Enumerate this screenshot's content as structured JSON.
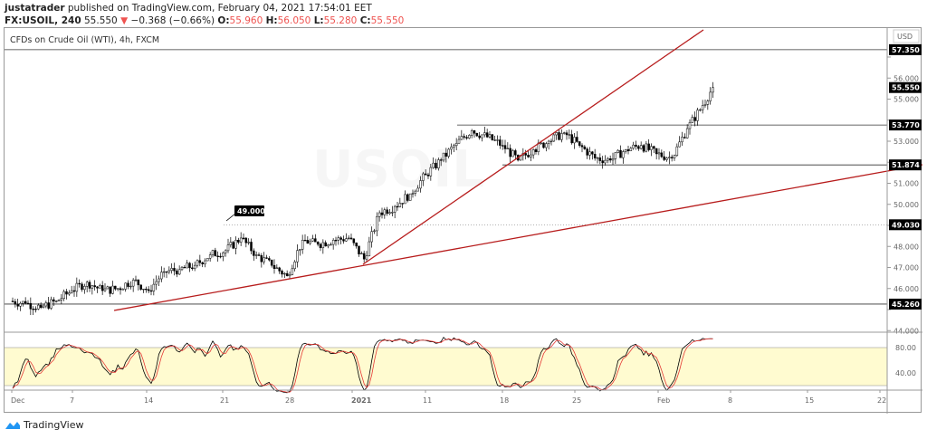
{
  "header": {
    "author": "justatrader",
    "published": "published on TradingView.com, February 04, 2021 17:54:01 EET",
    "symbol": "FX:USOIL, 240",
    "last": "55.550",
    "change": "−0.368 (−0.66%)",
    "o_label": "O:",
    "o": "55.960",
    "h_label": "H:",
    "h": "56.050",
    "l_label": "L:",
    "l": "55.280",
    "c_label": "C:",
    "c": "55.550"
  },
  "chart_title": "CFDs on Crude Oil (WTI), 4h, FXCM",
  "watermark": "USOIL",
  "currency": "USD",
  "logo": "TradingView",
  "colors": {
    "up": "#26a69a",
    "down": "#ef5350",
    "candle": "#000000",
    "trendline": "#b71c1c",
    "stoch_k": "#000000",
    "stoch_d": "#e53935",
    "band": "#fffbd0"
  },
  "chart_data": {
    "type": "candlestick",
    "interval": "4h",
    "price_ticks": [
      "57.000",
      "56.000",
      "55.000",
      "54.000",
      "53.000",
      "52.000",
      "51.000",
      "50.000",
      "49.000",
      "48.000",
      "47.000",
      "46.000",
      "45.000",
      "44.000"
    ],
    "ylim": [
      43.9,
      58.3
    ],
    "price_labels": [
      "57.350",
      "55.550",
      "53.770",
      "51.874",
      "49.030",
      "45.260"
    ],
    "horizontal_levels": [
      57.35,
      53.77,
      51.874,
      49.03,
      45.26
    ],
    "callout": "49.000",
    "time_ticks": [
      "Dec",
      "7",
      "14",
      "21",
      "28",
      "2021",
      "11",
      "18",
      "25",
      "Feb",
      "8",
      "15",
      "22"
    ],
    "daily_dates": [
      "Dec 1",
      "Dec 2",
      "Dec 3",
      "Dec 4",
      "Dec 7",
      "Dec 8",
      "Dec 9",
      "Dec 10",
      "Dec 11",
      "Dec 14",
      "Dec 15",
      "Dec 16",
      "Dec 17",
      "Dec 18",
      "Dec 21",
      "Dec 22",
      "Dec 23",
      "Dec 24",
      "Dec 28",
      "Dec 29",
      "Dec 30",
      "Dec 31",
      "Jan 4",
      "Jan 5",
      "Jan 6",
      "Jan 7",
      "Jan 8",
      "Jan 11",
      "Jan 12",
      "Jan 13",
      "Jan 14",
      "Jan 15",
      "Jan 18",
      "Jan 19",
      "Jan 20",
      "Jan 21",
      "Jan 22",
      "Jan 25",
      "Jan 26",
      "Jan 27",
      "Jan 28",
      "Jan 29",
      "Feb 1",
      "Feb 2",
      "Feb 3",
      "Feb 4"
    ],
    "daily_close": [
      45.3,
      45.1,
      45.4,
      45.9,
      46.3,
      45.9,
      46.0,
      46.4,
      45.9,
      46.8,
      46.9,
      47.1,
      47.6,
      47.8,
      48.4,
      47.6,
      47.1,
      46.6,
      48.3,
      48.1,
      48.3,
      48.4,
      47.4,
      49.6,
      49.9,
      50.5,
      51.4,
      52.1,
      52.9,
      53.5,
      53.2,
      52.8,
      52.1,
      52.6,
      53.0,
      53.4,
      52.8,
      52.2,
      52.1,
      52.6,
      52.8,
      52.4,
      52.2,
      53.6,
      54.7,
      55.55
    ],
    "stoch_ticks": [
      "80.00",
      "40.00"
    ],
    "stoch_band": [
      20,
      80
    ]
  }
}
